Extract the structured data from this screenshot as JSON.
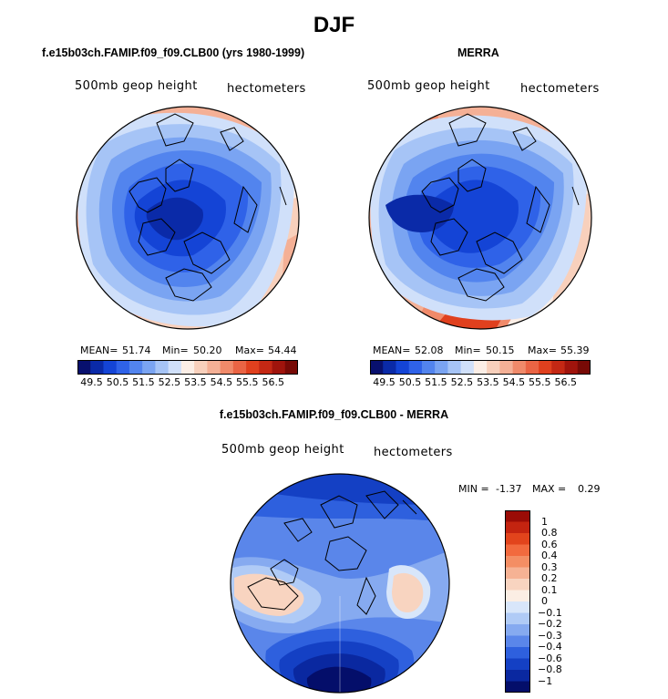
{
  "page": {
    "title": "DJF"
  },
  "panel_left": {
    "title": "f.e15b03ch.FAMIP.f09_f09.CLB00 (yrs 1980-1999)",
    "variable": "500mb geop height",
    "units": "hectometers",
    "mean_label": "MEAN=",
    "mean": "51.74",
    "min_label": "Min=",
    "min": "50.20",
    "max_label": "Max=",
    "max": "54.44"
  },
  "panel_right": {
    "title": "MERRA",
    "variable": "500mb geop height",
    "units": "hectometers",
    "mean_label": "MEAN=",
    "mean": "52.08",
    "min_label": "Min=",
    "min": "50.15",
    "max_label": "Max=",
    "max": "55.39"
  },
  "panel_diff": {
    "title": "f.e15b03ch.FAMIP.f09_f09.CLB00 - MERRA",
    "variable": "500mb geop height",
    "units": "hectometers",
    "min_label": "MIN =",
    "min": "-1.37",
    "max_label": "MAX =",
    "max": "0.29"
  },
  "colorbar_abs": {
    "labels": [
      "49.5",
      "50.5",
      "51.5",
      "52.5",
      "53.5",
      "54.5",
      "55.5",
      "56.5"
    ],
    "colors": [
      "#08106e",
      "#0a2aa8",
      "#1444d6",
      "#2f62e8",
      "#5284ee",
      "#7aa4f2",
      "#a6c4f6",
      "#d0e0fa",
      "#fbeee6",
      "#f8d0bc",
      "#f4b096",
      "#f08a6a",
      "#ea6444",
      "#e0401e",
      "#c42814",
      "#a0140c",
      "#780a06"
    ]
  },
  "colorbar_diff": {
    "labels": [
      "1",
      "0.8",
      "0.6",
      "0.4",
      "0.3",
      "0.2",
      "0.1",
      "0",
      "−0.1",
      "−0.2",
      "−0.3",
      "−0.4",
      "−0.6",
      "−0.8",
      "−1"
    ],
    "colors": [
      "#9a0c06",
      "#c42410",
      "#e2441c",
      "#f26a3e",
      "#f48e64",
      "#f6b294",
      "#f8d4c0",
      "#fbeee4",
      "#d8e6fa",
      "#b0cbf6",
      "#86aaf0",
      "#5a86ea",
      "#2e60de",
      "#1440c4",
      "#0a28a0",
      "#040e6a"
    ]
  },
  "chart_data": [
    {
      "type": "heatmap",
      "title": "f.e15b03ch.FAMIP.f09_f09.CLB00 (yrs 1980-1999)",
      "projection": "polar stereographic, north pole",
      "variable": "500mb geop height",
      "units": "hectometers",
      "mean": 51.74,
      "min": 50.2,
      "max": 54.44,
      "levels": [
        49.5,
        50.5,
        51.5,
        52.5,
        53.5,
        54.5,
        55.5,
        56.5
      ]
    },
    {
      "type": "heatmap",
      "title": "MERRA",
      "projection": "polar stereographic, north pole",
      "variable": "500mb geop height",
      "units": "hectometers",
      "mean": 52.08,
      "min": 50.15,
      "max": 55.39,
      "levels": [
        49.5,
        50.5,
        51.5,
        52.5,
        53.5,
        54.5,
        55.5,
        56.5
      ]
    },
    {
      "type": "heatmap",
      "title": "f.e15b03ch.FAMIP.f09_f09.CLB00 - MERRA",
      "projection": "polar stereographic, north pole",
      "variable": "500mb geop height",
      "units": "hectometers",
      "min": -1.37,
      "max": 0.29,
      "levels": [
        -1,
        -0.8,
        -0.6,
        -0.4,
        -0.3,
        -0.2,
        -0.1,
        0,
        0.1,
        0.2,
        0.3,
        0.4,
        0.6,
        0.8,
        1
      ]
    }
  ]
}
